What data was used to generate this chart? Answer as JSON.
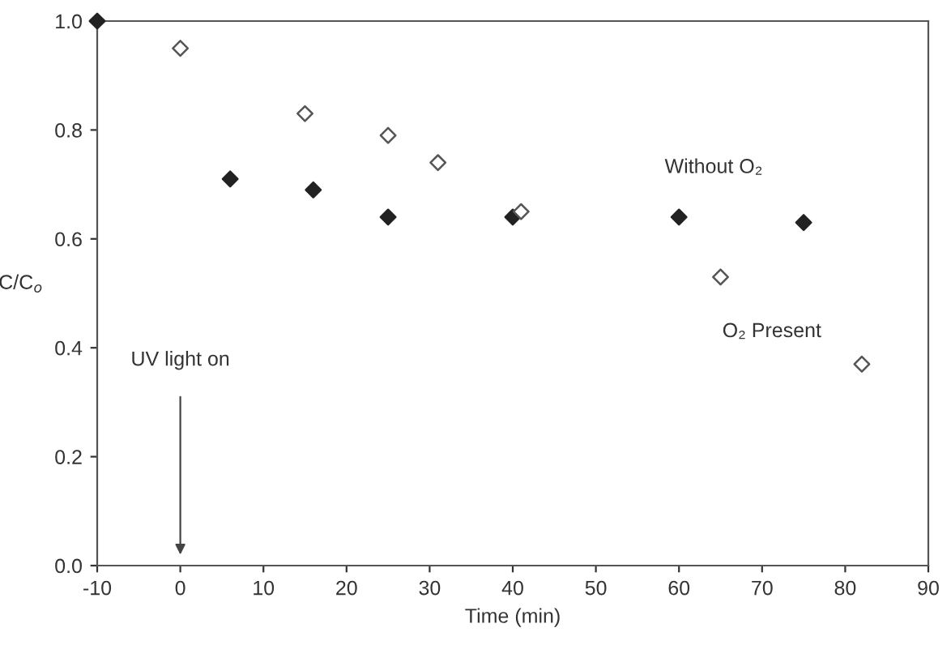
{
  "chart_data": {
    "type": "scatter",
    "xlabel": "Time (min)",
    "ylabel": "C/C$_{o}$",
    "xlim": [
      -10,
      90
    ],
    "xticks": [
      -10,
      0,
      10,
      20,
      30,
      40,
      50,
      60,
      70,
      80,
      90
    ],
    "ylim": [
      0,
      1.0
    ],
    "yticks": [
      {
        "value": 0,
        "label": "0.0"
      },
      0.2,
      0.4,
      0.6,
      0.8,
      {
        "value": 1,
        "label": "1.0"
      }
    ],
    "grid": false,
    "legend": false,
    "marker": "diamond",
    "series": [
      {
        "name": "Without O₂",
        "color": "#222222",
        "x": [
          -10,
          6,
          16,
          25,
          40,
          60,
          75
        ],
        "values": [
          1.0,
          0.71,
          0.69,
          0.64,
          0.64,
          0.64,
          0.63
        ]
      },
      {
        "name": "O₂ Present",
        "color": "#555555",
        "x": [
          0,
          15,
          25,
          31,
          41,
          65,
          82
        ],
        "values": [
          0.95,
          0.83,
          0.79,
          0.74,
          0.65,
          0.53,
          0.37
        ]
      }
    ],
    "annotations": [
      "UV light on"
    ]
  }
}
